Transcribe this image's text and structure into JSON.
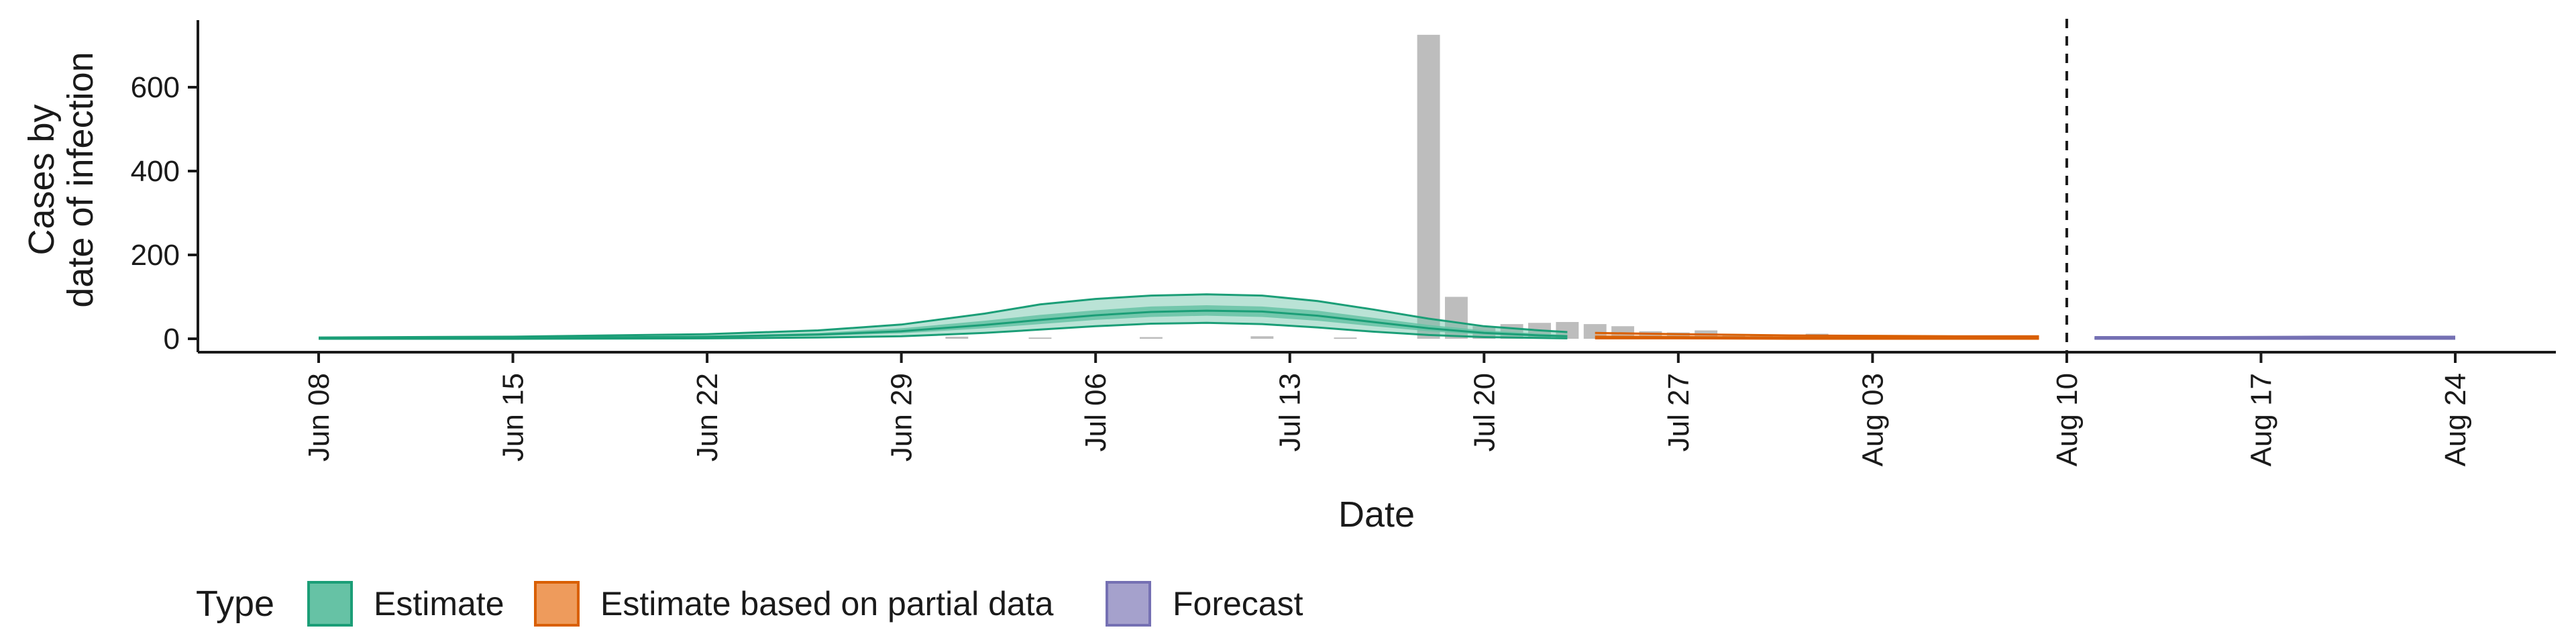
{
  "chart_data": {
    "type": "area",
    "xlabel": "Date",
    "ylabel_lines": [
      "Cases by",
      "date of infection"
    ],
    "x_ticks": [
      "Jun 08",
      "Jun 15",
      "Jun 22",
      "Jun 29",
      "Jul 06",
      "Jul 13",
      "Jul 20",
      "Jul 27",
      "Aug 03",
      "Aug 10",
      "Aug 17",
      "Aug 24"
    ],
    "y_ticks": [
      0,
      200,
      400,
      600
    ],
    "ylim": [
      -30,
      770
    ],
    "x_start_date": "2020-06-08",
    "x_end_date": "2020-08-24",
    "vline_date": "2020-08-10",
    "legend": {
      "title": "Type",
      "position": "bottom",
      "entries": [
        {
          "label": "Estimate",
          "fill": "#66c2a5",
          "stroke": "#1b9e77"
        },
        {
          "label": "Estimate based on partial data",
          "fill": "#ee9b5c",
          "stroke": "#d95f02"
        },
        {
          "label": "Forecast",
          "fill": "#a5a1cc",
          "stroke": "#7570b3"
        }
      ]
    },
    "colors": {
      "estimate_line": "#1b9e77",
      "estimate_band": "#66c2a5",
      "partial_line": "#d95f02",
      "forecast_line": "#7570b3",
      "bars": "#bdbdbd"
    },
    "bars": [
      {
        "date": "2020-07-01",
        "value": 5
      },
      {
        "date": "2020-07-04",
        "value": 3
      },
      {
        "date": "2020-07-08",
        "value": 4
      },
      {
        "date": "2020-07-12",
        "value": 6
      },
      {
        "date": "2020-07-15",
        "value": 3
      },
      {
        "date": "2020-07-18",
        "value": 725
      },
      {
        "date": "2020-07-19",
        "value": 100
      },
      {
        "date": "2020-07-20",
        "value": 30
      },
      {
        "date": "2020-07-21",
        "value": 35
      },
      {
        "date": "2020-07-22",
        "value": 38
      },
      {
        "date": "2020-07-23",
        "value": 40
      },
      {
        "date": "2020-07-24",
        "value": 35
      },
      {
        "date": "2020-07-25",
        "value": 30
      },
      {
        "date": "2020-07-26",
        "value": 18
      },
      {
        "date": "2020-07-27",
        "value": 15
      },
      {
        "date": "2020-07-28",
        "value": 20
      },
      {
        "date": "2020-07-29",
        "value": 10
      },
      {
        "date": "2020-07-30",
        "value": 8
      },
      {
        "date": "2020-07-31",
        "value": 5
      },
      {
        "date": "2020-08-01",
        "value": 12
      },
      {
        "date": "2020-08-02",
        "value": 4
      },
      {
        "date": "2020-08-03",
        "value": 3
      },
      {
        "date": "2020-08-05",
        "value": 2
      },
      {
        "date": "2020-08-07",
        "value": 2
      }
    ],
    "series": [
      {
        "name": "Estimate",
        "dates": [
          "2020-06-08",
          "2020-06-15",
          "2020-06-22",
          "2020-06-26",
          "2020-06-29",
          "2020-07-02",
          "2020-07-04",
          "2020-07-06",
          "2020-07-08",
          "2020-07-10",
          "2020-07-12",
          "2020-07-14",
          "2020-07-16",
          "2020-07-18",
          "2020-07-20",
          "2020-07-22",
          "2020-07-23"
        ],
        "median": [
          1,
          2,
          5,
          10,
          18,
          33,
          45,
          56,
          64,
          67,
          65,
          55,
          40,
          25,
          14,
          8,
          6
        ],
        "lower_90": [
          0,
          0,
          1,
          3,
          6,
          14,
          22,
          30,
          36,
          38,
          35,
          27,
          17,
          9,
          4,
          2,
          1
        ],
        "upper_90": [
          3,
          5,
          11,
          20,
          34,
          60,
          82,
          95,
          103,
          106,
          103,
          90,
          70,
          48,
          30,
          20,
          16
        ],
        "lower_50": [
          1,
          1,
          3,
          7,
          13,
          25,
          35,
          45,
          52,
          55,
          52,
          43,
          30,
          18,
          10,
          5,
          4
        ],
        "upper_50": [
          2,
          3,
          7,
          14,
          25,
          43,
          57,
          68,
          77,
          80,
          77,
          67,
          50,
          33,
          20,
          12,
          9
        ]
      },
      {
        "name": "Estimate based on partial data",
        "dates": [
          "2020-07-24",
          "2020-07-27",
          "2020-07-31",
          "2020-08-03",
          "2020-08-06",
          "2020-08-09"
        ],
        "median": [
          5,
          4,
          3,
          3,
          2,
          2
        ],
        "lower_90": [
          1,
          1,
          0,
          0,
          0,
          0
        ],
        "upper_90": [
          14,
          11,
          8,
          7,
          6,
          6
        ]
      },
      {
        "name": "Forecast",
        "dates": [
          "2020-08-11",
          "2020-08-15",
          "2020-08-19",
          "2020-08-24"
        ],
        "median": [
          1,
          1,
          1,
          1
        ],
        "lower_90": [
          0,
          0,
          0,
          0
        ],
        "upper_90": [
          4,
          4,
          5,
          5
        ]
      }
    ]
  }
}
